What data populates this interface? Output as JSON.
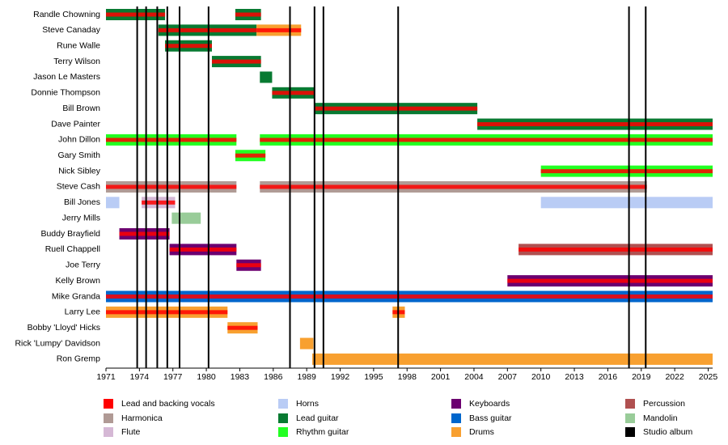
{
  "chart_data": {
    "type": "timeline",
    "xlim": [
      1971,
      2025.4
    ],
    "xticks": [
      1971,
      1974,
      1977,
      1980,
      1983,
      1986,
      1989,
      1992,
      1995,
      1998,
      2001,
      2004,
      2007,
      2010,
      2013,
      2016,
      2019,
      2022,
      2025
    ],
    "albums": [
      1973.8,
      1974.6,
      1975.6,
      1976.5,
      1977.6,
      1980.2,
      1987.5,
      1989.7,
      1990.5,
      1997.2,
      2017.9,
      2019.4
    ],
    "legend": [
      {
        "name": "Lead and backing vocals",
        "color": "#ff0000"
      },
      {
        "name": "Harmonica",
        "color": "#b09a95"
      },
      {
        "name": "Flute",
        "color": "#d5b8d5"
      },
      {
        "name": "Horns",
        "color": "#b9ccf5"
      },
      {
        "name": "Lead guitar",
        "color": "#087a32"
      },
      {
        "name": "Rhythm guitar",
        "color": "#22ff22"
      },
      {
        "name": "Keyboards",
        "color": "#6c0070"
      },
      {
        "name": "Bass guitar",
        "color": "#0066cc"
      },
      {
        "name": "Drums",
        "color": "#f8a030"
      },
      {
        "name": "Percussion",
        "color": "#b05050"
      },
      {
        "name": "Mandolin",
        "color": "#99cc99"
      },
      {
        "name": "Studio album",
        "color": "#000000"
      }
    ],
    "members": [
      {
        "name": "Randle Chowning",
        "periods": [
          {
            "start": 1971,
            "end": 1976.3,
            "roles": [
              "Lead guitar",
              "Lead and backing vocals"
            ]
          },
          {
            "start": 1982.6,
            "end": 1984.9,
            "roles": [
              "Lead guitar",
              "Lead and backing vocals"
            ]
          }
        ]
      },
      {
        "name": "Steve Canaday",
        "periods": [
          {
            "start": 1975.7,
            "end": 1984.5,
            "roles": [
              "Lead guitar",
              "Lead and backing vocals"
            ]
          },
          {
            "start": 1984.5,
            "end": 1988.5,
            "roles": [
              "Drums",
              "Lead and backing vocals"
            ]
          }
        ]
      },
      {
        "name": "Rune Walle",
        "periods": [
          {
            "start": 1976.3,
            "end": 1980.5,
            "roles": [
              "Lead guitar",
              "Lead and backing vocals"
            ]
          }
        ]
      },
      {
        "name": "Terry Wilson",
        "periods": [
          {
            "start": 1980.5,
            "end": 1984.9,
            "roles": [
              "Lead guitar",
              "Lead and backing vocals"
            ]
          }
        ]
      },
      {
        "name": "Jason Le Masters",
        "periods": [
          {
            "start": 1984.8,
            "end": 1985.9,
            "roles": [
              "Lead guitar"
            ]
          }
        ]
      },
      {
        "name": "Donnie Thompson",
        "periods": [
          {
            "start": 1985.9,
            "end": 1989.7,
            "roles": [
              "Lead guitar",
              "Lead and backing vocals"
            ]
          }
        ]
      },
      {
        "name": "Bill Brown",
        "periods": [
          {
            "start": 1989.7,
            "end": 2004.3,
            "roles": [
              "Lead guitar",
              "Lead and backing vocals"
            ]
          }
        ]
      },
      {
        "name": "Dave Painter",
        "periods": [
          {
            "start": 2004.3,
            "end": 2025.4,
            "roles": [
              "Lead guitar",
              "Lead and backing vocals"
            ]
          }
        ]
      },
      {
        "name": "John Dillon",
        "periods": [
          {
            "start": 1971,
            "end": 1982.7,
            "roles": [
              "Rhythm guitar",
              "Lead and backing vocals"
            ]
          },
          {
            "start": 1984.8,
            "end": 2025.4,
            "roles": [
              "Rhythm guitar",
              "Lead and backing vocals"
            ]
          }
        ]
      },
      {
        "name": "Gary Smith",
        "periods": [
          {
            "start": 1982.6,
            "end": 1985.3,
            "roles": [
              "Rhythm guitar",
              "Lead and backing vocals"
            ]
          }
        ]
      },
      {
        "name": "Nick Sibley",
        "periods": [
          {
            "start": 2010,
            "end": 2025.4,
            "roles": [
              "Rhythm guitar",
              "Lead and backing vocals"
            ]
          }
        ]
      },
      {
        "name": "Steve Cash",
        "periods": [
          {
            "start": 1971,
            "end": 1982.7,
            "roles": [
              "Harmonica",
              "Lead and backing vocals"
            ]
          },
          {
            "start": 1984.8,
            "end": 2019.5,
            "roles": [
              "Harmonica",
              "Lead and backing vocals"
            ]
          }
        ]
      },
      {
        "name": "Bill Jones",
        "periods": [
          {
            "start": 1971,
            "end": 1972.2,
            "roles": [
              "Horns"
            ]
          },
          {
            "start": 1974.2,
            "end": 1977.2,
            "roles": [
              "Flute",
              "Lead and backing vocals"
            ]
          },
          {
            "start": 2010,
            "end": 2025.4,
            "roles": [
              "Horns"
            ]
          }
        ]
      },
      {
        "name": "Jerry Mills",
        "periods": [
          {
            "start": 1976.9,
            "end": 1979.5,
            "roles": [
              "Mandolin"
            ]
          }
        ]
      },
      {
        "name": "Buddy Brayfield",
        "periods": [
          {
            "start": 1972.2,
            "end": 1976.7,
            "roles": [
              "Keyboards",
              "Lead and backing vocals"
            ]
          }
        ]
      },
      {
        "name": "Ruell Chappell",
        "periods": [
          {
            "start": 1976.7,
            "end": 1982.7,
            "roles": [
              "Keyboards",
              "Lead and backing vocals"
            ]
          },
          {
            "start": 2008,
            "end": 2025.4,
            "roles": [
              "Percussion",
              "Lead and backing vocals"
            ]
          }
        ]
      },
      {
        "name": "Joe Terry",
        "periods": [
          {
            "start": 1982.7,
            "end": 1984.9,
            "roles": [
              "Keyboards",
              "Lead and backing vocals"
            ]
          }
        ]
      },
      {
        "name": "Kelly Brown",
        "periods": [
          {
            "start": 2007,
            "end": 2025.4,
            "roles": [
              "Keyboards",
              "Lead and backing vocals"
            ]
          }
        ]
      },
      {
        "name": "Mike Granda",
        "periods": [
          {
            "start": 1971,
            "end": 2025.4,
            "roles": [
              "Bass guitar",
              "Lead and backing vocals"
            ]
          }
        ]
      },
      {
        "name": "Larry Lee",
        "periods": [
          {
            "start": 1971,
            "end": 1981.9,
            "roles": [
              "Drums",
              "Lead and backing vocals"
            ]
          },
          {
            "start": 1996.7,
            "end": 1997.8,
            "roles": [
              "Drums",
              "Lead and backing vocals"
            ]
          }
        ]
      },
      {
        "name": "Bobby 'Lloyd' Hicks",
        "periods": [
          {
            "start": 1981.9,
            "end": 1984.6,
            "roles": [
              "Drums",
              "Lead and backing vocals"
            ]
          }
        ]
      },
      {
        "name": "Rick 'Lumpy' Davidson",
        "periods": [
          {
            "start": 1988.4,
            "end": 1989.6,
            "roles": [
              "Drums"
            ]
          }
        ]
      },
      {
        "name": "Ron Gremp",
        "periods": [
          {
            "start": 1989.5,
            "end": 2025.4,
            "roles": [
              "Drums"
            ]
          }
        ]
      }
    ]
  }
}
